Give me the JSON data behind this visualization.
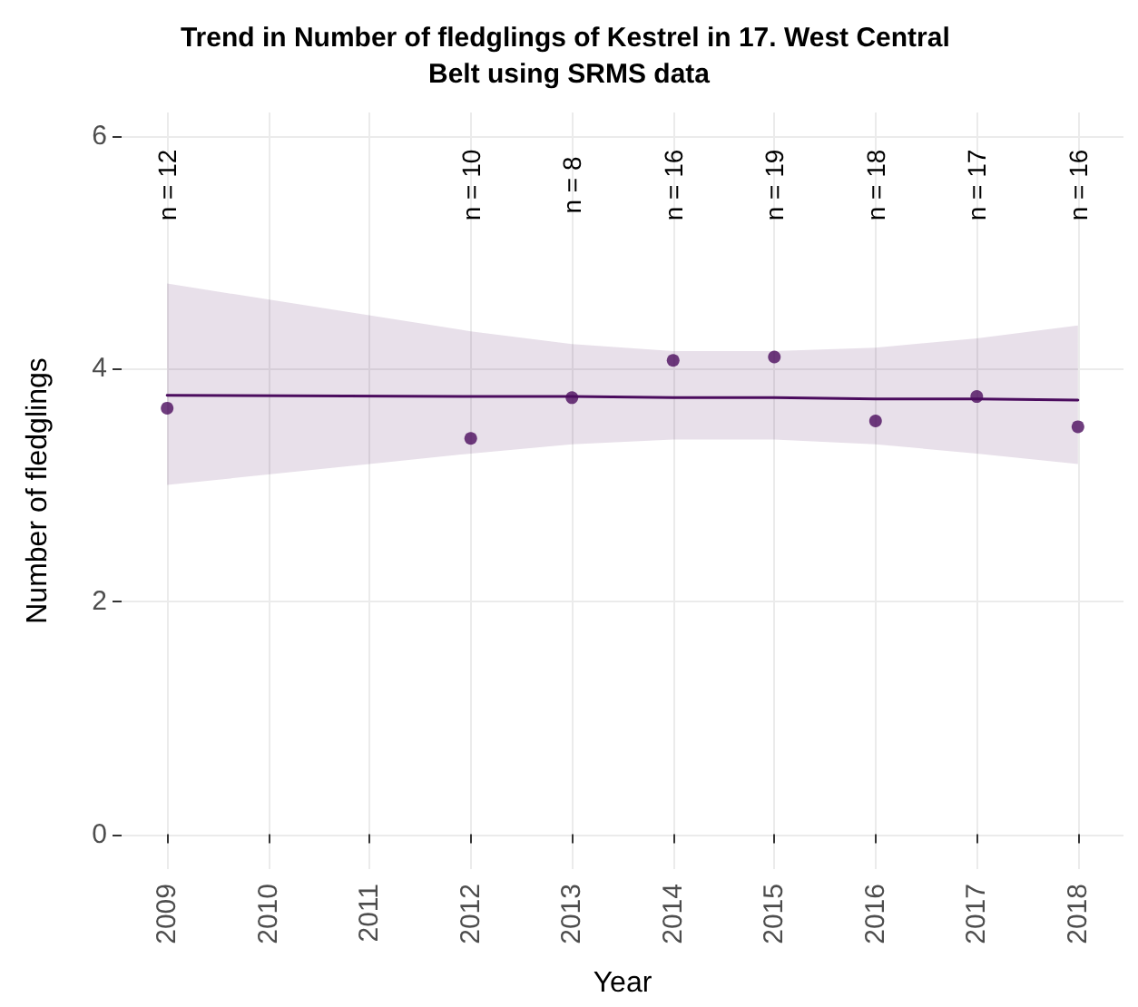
{
  "chart_data": {
    "type": "scatter",
    "title": "Trend in Number of fledglings of Kestrel in 17. West Central Belt using SRMS data",
    "xlabel": "Year",
    "ylabel": "Number of fledglings",
    "x": [
      2009,
      2012,
      2013,
      2014,
      2015,
      2016,
      2017,
      2018
    ],
    "series": [
      {
        "color": "#4b0c5e",
        "marker": "circle",
        "values": [
          3.66,
          3.4,
          3.75,
          4.07,
          4.1,
          3.55,
          3.76,
          3.5
        ]
      },
      {
        "type": "line",
        "color": "#4b0c5e",
        "line_style": "solid",
        "marker": "none",
        "x": [
          2009,
          2012,
          2013,
          2014,
          2015,
          2016,
          2017,
          2018
        ],
        "values": [
          3.77,
          3.76,
          3.76,
          3.75,
          3.75,
          3.74,
          3.74,
          3.73
        ],
        "lower": [
          3.0,
          3.27,
          3.35,
          3.39,
          3.39,
          3.35,
          3.27,
          3.18
        ],
        "upper": [
          4.73,
          4.32,
          4.21,
          4.15,
          4.15,
          4.18,
          4.26,
          4.37
        ]
      }
    ],
    "annotations": [
      "n = 12",
      "n = 10",
      "n = 8",
      "n = 16",
      "n = 19",
      "n = 18",
      "n = 17",
      "n = 16"
    ],
    "xlim": [
      2008.55,
      2018.45
    ],
    "xticks": [
      2009,
      2010,
      2011,
      2012,
      2013,
      2014,
      2015,
      2016,
      2017,
      2018
    ],
    "ylim": [
      -0.3,
      6.2
    ],
    "yticks": [
      0,
      2,
      4,
      6
    ],
    "grid": true
  }
}
